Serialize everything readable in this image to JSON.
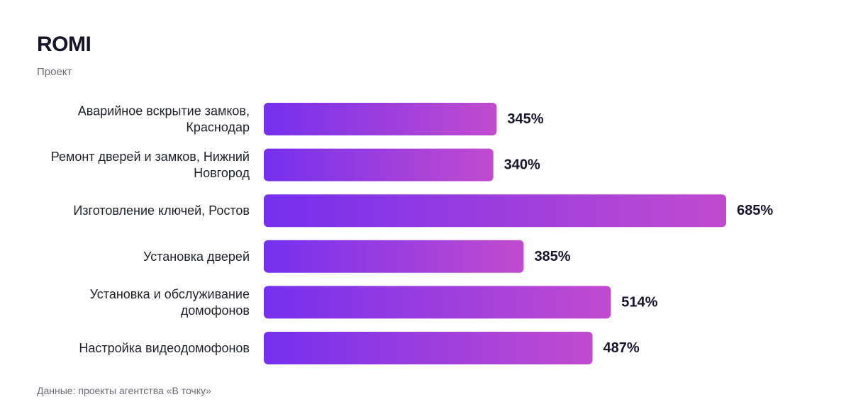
{
  "chart_data": {
    "type": "bar",
    "orientation": "horizontal",
    "title": "ROMI",
    "subtitle": "Проект",
    "categories": [
      [
        "Аварийное вскрытие замков,",
        "Краснодар"
      ],
      [
        "Ремонт дверей и замков, Нижний",
        "Новгород"
      ],
      [
        "Изготовление ключей, Ростов"
      ],
      [
        "Установка дверей"
      ],
      [
        "Установка и обслуживание",
        "домофонов"
      ],
      [
        "Настройка видеодомофонов"
      ]
    ],
    "values": [
      345,
      340,
      685,
      385,
      514,
      487
    ],
    "value_labels": [
      "345%",
      "340%",
      "685%",
      "385%",
      "514%",
      "487%"
    ],
    "unit": "%",
    "xlim": [
      0,
      685
    ],
    "grid": false,
    "legend": "none",
    "source": "Данные: проекты агентства «В точку»"
  },
  "colors": {
    "bar_gradient_start": "#7530ee",
    "bar_gradient_end": "#c14bcf",
    "text": "#14142b",
    "muted": "#6b6b78"
  }
}
